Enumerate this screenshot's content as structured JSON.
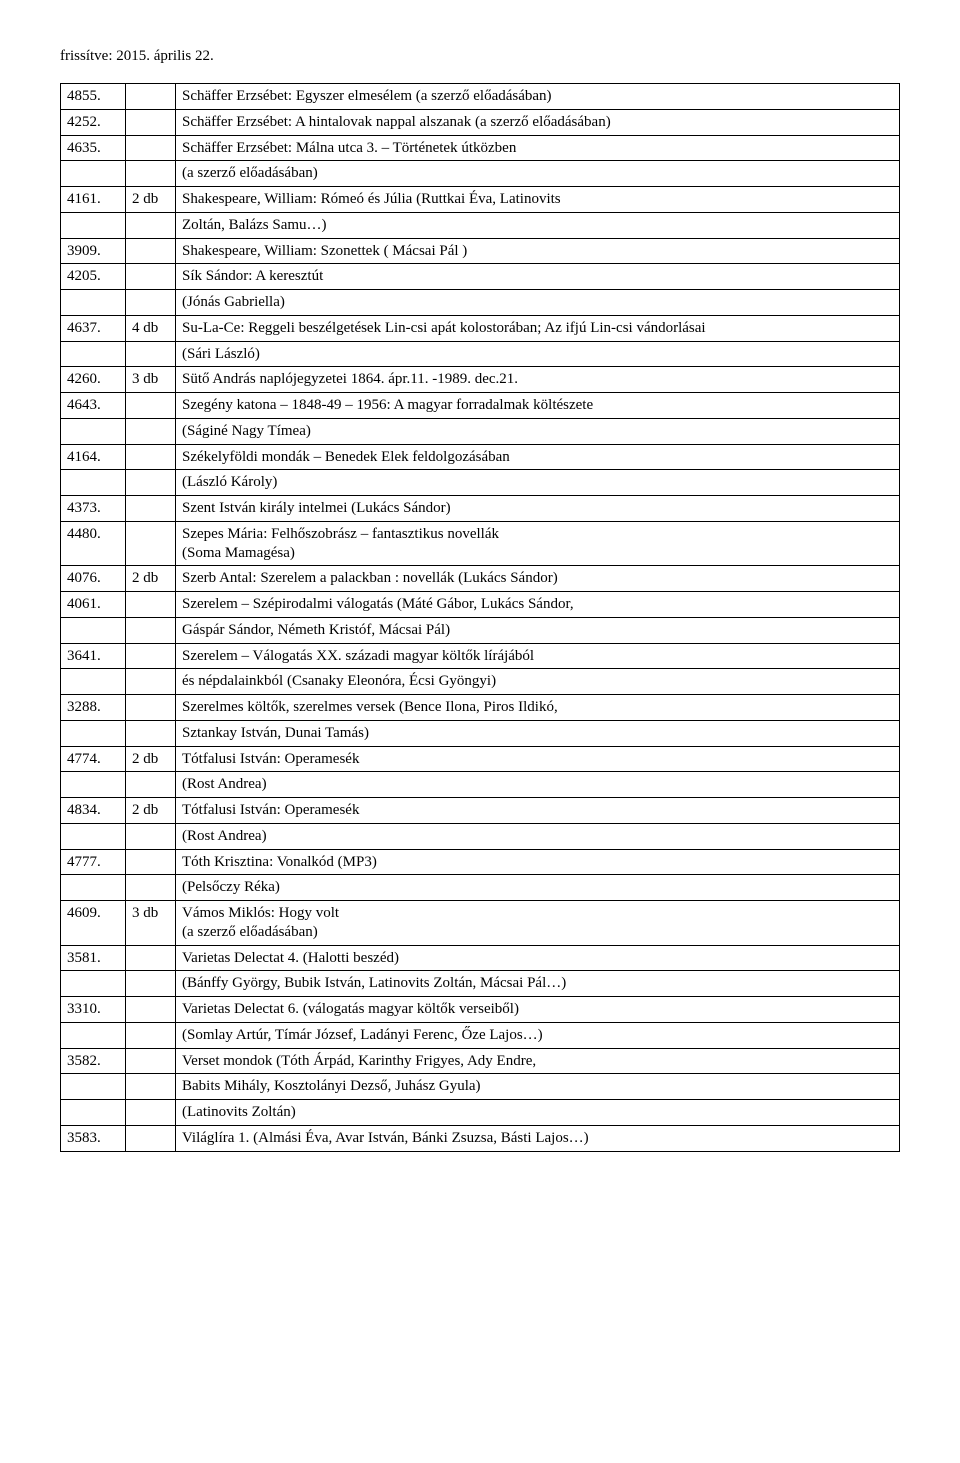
{
  "header": "frissítve: 2015. április 22.",
  "columns": {
    "c1_width": 65,
    "c2_width": 50
  },
  "rows": [
    [
      "4855.",
      "",
      "Schäffer Erzsébet: Egyszer elmesélem  (a szerző előadásában)"
    ],
    [
      "4252.",
      "",
      "Schäffer Erzsébet: A hintalovak nappal alszanak (a szerző előadásában)"
    ],
    [
      "4635.",
      "",
      "Schäffer Erzsébet: Málna utca 3. – Történetek útközben"
    ],
    [
      "",
      "",
      "(a szerző előadásában)"
    ],
    [
      "4161.",
      "2 db",
      "Shakespeare, William: Rómeó és Júlia (Ruttkai Éva, Latinovits"
    ],
    [
      "",
      "",
      "Zoltán, Balázs Samu…)"
    ],
    [
      "3909.",
      "",
      "Shakespeare, William: Szonettek ( Mácsai Pál )"
    ],
    [
      "4205.",
      "",
      "Sík Sándor: A keresztút"
    ],
    [
      "",
      "",
      "(Jónás Gabriella)"
    ],
    [
      "4637.",
      "4 db",
      "Su-La-Ce: Reggeli beszélgetések Lin-csi apát kolostorában; Az ifjú Lin-csi vándorlásai"
    ],
    [
      "",
      "",
      "(Sári László)"
    ],
    [
      "4260.",
      "3 db",
      "Sütő András naplójegyzetei 1864. ápr.11. -1989. dec.21."
    ],
    [
      "4643.",
      "",
      "Szegény katona – 1848-49 – 1956: A magyar forradalmak költészete"
    ],
    [
      "",
      "",
      "(Ságiné Nagy Tímea)"
    ],
    [
      "4164.",
      "",
      "Székelyföldi mondák – Benedek Elek feldolgozásában"
    ],
    [
      "",
      "",
      "(László Károly)"
    ],
    [
      "4373.",
      "",
      "Szent István király intelmei  (Lukács Sándor)"
    ],
    [
      "4480.",
      "",
      "Szepes Mária: Felhőszobrász – fantasztikus novellák\n(Soma Mamagésa)"
    ],
    [
      "4076.",
      "2 db",
      "Szerb Antal: Szerelem a palackban : novellák (Lukács Sándor)"
    ],
    [
      "4061.",
      "",
      "Szerelem – Szépirodalmi válogatás (Máté Gábor, Lukács Sándor,"
    ],
    [
      "",
      "",
      "Gáspár Sándor, Németh Kristóf, Mácsai Pál)"
    ],
    [
      "3641.",
      "",
      "Szerelem – Válogatás XX. századi magyar költők lírájából"
    ],
    [
      "",
      "",
      "és népdalainkból (Csanaky Eleonóra, Écsi Gyöngyi)"
    ],
    [
      "3288.",
      "",
      "Szerelmes költők, szerelmes versek (Bence Ilona, Piros Ildikó,"
    ],
    [
      "",
      "",
      "Sztankay István, Dunai Tamás)"
    ],
    [
      "4774.",
      "2 db",
      "Tótfalusi István: Operamesék"
    ],
    [
      "",
      "",
      "(Rost Andrea)"
    ],
    [
      "4834.",
      "2 db",
      "Tótfalusi István: Operamesék"
    ],
    [
      "",
      "",
      "(Rost Andrea)"
    ],
    [
      "4777.",
      "",
      "Tóth Krisztina: Vonalkód (MP3)"
    ],
    [
      "",
      "",
      "(Pelsőczy Réka)"
    ],
    [
      "4609.",
      "3 db",
      "Vámos Miklós: Hogy volt\n(a szerző előadásában)"
    ],
    [
      "3581.",
      "",
      "Varietas Delectat 4. (Halotti beszéd)"
    ],
    [
      "",
      "",
      "(Bánffy György, Bubik István, Latinovits Zoltán, Mácsai Pál…)"
    ],
    [
      "3310.",
      "",
      "Varietas Delectat 6. (válogatás magyar költők verseiből)"
    ],
    [
      "",
      "",
      "(Somlay Artúr, Tímár József, Ladányi Ferenc, Őze Lajos…)"
    ],
    [
      "3582.",
      "",
      "Verset mondok (Tóth Árpád, Karinthy Frigyes, Ady Endre,"
    ],
    [
      "",
      "",
      " Babits Mihály, Kosztolányi Dezső, Juhász Gyula)"
    ],
    [
      "",
      "",
      "(Latinovits Zoltán)"
    ],
    [
      "3583.",
      "",
      "Világlíra 1. (Almási Éva, Avar István, Bánki Zsuzsa, Básti Lajos…)"
    ]
  ]
}
